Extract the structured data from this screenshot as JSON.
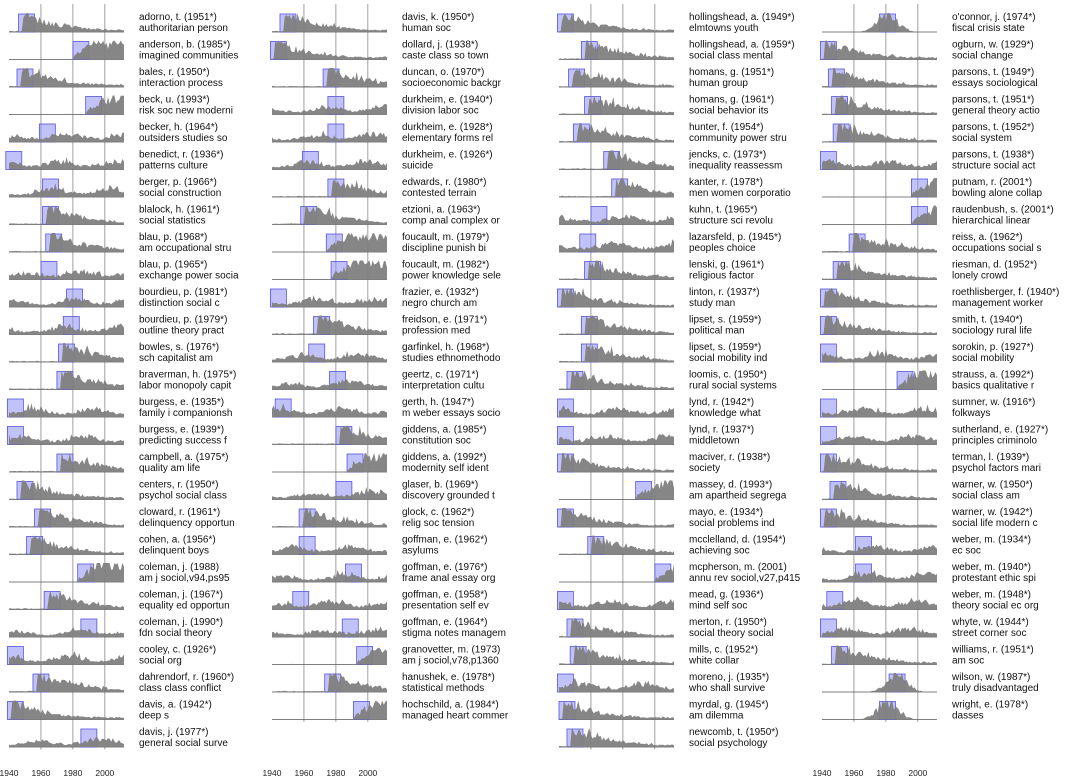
{
  "chart_data": {
    "type": "area",
    "title": "",
    "x_axis": {
      "range": [
        1940,
        2012
      ],
      "ticks": [
        1940,
        1960,
        1980,
        2000
      ],
      "gridlines": [
        1960,
        1980,
        2000
      ]
    },
    "colors": {
      "area": "#7f7f7f",
      "highlight_fill": "#8f8ff5",
      "highlight_border": "#5555dd",
      "gridline": "#888888"
    },
    "columns": [
      {
        "entries": [
          {
            "name": "adorno, t. (1951*)",
            "subtitle": "authoritarian person",
            "hl": 1951,
            "shape": "decay"
          },
          {
            "name": "anderson, b. (1985*)",
            "subtitle": "imagined communities",
            "hl": 1985,
            "shape": "grow"
          },
          {
            "name": "bales, r. (1950*)",
            "subtitle": "interaction process",
            "hl": 1950,
            "shape": "decay"
          },
          {
            "name": "beck, u. (1993*)",
            "subtitle": "risk soc new moderni",
            "hl": 1993,
            "shape": "grow"
          },
          {
            "name": "becker, h. (1964*)",
            "subtitle": "outsiders studies so",
            "hl": 1964,
            "shape": "flat"
          },
          {
            "name": "benedict, r. (1936*)",
            "subtitle": "patterns culture",
            "hl": 1943,
            "shape": "flat"
          },
          {
            "name": "berger, p. (1966*)",
            "subtitle": "social construction",
            "hl": 1966,
            "shape": "flat"
          },
          {
            "name": "blalock, h. (1961*)",
            "subtitle": "social statistics",
            "hl": 1966,
            "shape": "decay"
          },
          {
            "name": "blau, p. (1968*)",
            "subtitle": "am occupational stru",
            "hl": 1968,
            "shape": "decay"
          },
          {
            "name": "blau, p. (1965*)",
            "subtitle": "exchange power socia",
            "hl": 1965,
            "shape": "flat"
          },
          {
            "name": "bourdieu, p. (1981*)",
            "subtitle": "distinction social c",
            "hl": 1981,
            "shape": "flat"
          },
          {
            "name": "bourdieu, p. (1979*)",
            "subtitle": "outline theory pract",
            "hl": 1979,
            "shape": "flat"
          },
          {
            "name": "bowles, s. (1976*)",
            "subtitle": "sch capitalist am",
            "hl": 1976,
            "shape": "decay"
          },
          {
            "name": "braverman, h. (1975*)",
            "subtitle": "labor monopoly capit",
            "hl": 1975,
            "shape": "decay"
          },
          {
            "name": "burgess, e. (1935*)",
            "subtitle": "family i companionsh",
            "hl": 1944,
            "shape": "flat"
          },
          {
            "name": "burgess, e. (1939*)",
            "subtitle": "predicting success f",
            "hl": 1944,
            "shape": "flat"
          },
          {
            "name": "campbell, a. (1975*)",
            "subtitle": "quality am life",
            "hl": 1975,
            "shape": "decay"
          },
          {
            "name": "centers, r. (1950*)",
            "subtitle": "psychol social class",
            "hl": 1950,
            "shape": "decay"
          },
          {
            "name": "cloward, r. (1961*)",
            "subtitle": "delinquency opportun",
            "hl": 1961,
            "shape": "decay"
          },
          {
            "name": "cohen, a. (1956*)",
            "subtitle": "delinquent boys",
            "hl": 1956,
            "shape": "decay"
          },
          {
            "name": "coleman, j. (1988)",
            "subtitle": "am j sociol,v94,ps95",
            "hl": 1988,
            "shape": "grow"
          },
          {
            "name": "coleman, j. (1967*)",
            "subtitle": "equality ed opportun",
            "hl": 1967,
            "shape": "decay"
          },
          {
            "name": "coleman, j. (1990*)",
            "subtitle": "fdn social theory",
            "hl": 1990,
            "shape": "flat"
          },
          {
            "name": "cooley, c. (1926*)",
            "subtitle": "social org",
            "hl": 1944,
            "shape": "flat"
          },
          {
            "name": "dahrendorf, r. (1960*)",
            "subtitle": "class class conflict",
            "hl": 1960,
            "shape": "decay"
          },
          {
            "name": "davis, a. (1942*)",
            "subtitle": "deep s",
            "hl": 1944,
            "shape": "decay"
          },
          {
            "name": "davis, j. (1977*)",
            "subtitle": "general social surve",
            "hl": 1990,
            "shape": "flat"
          }
        ]
      },
      {
        "entries": [
          {
            "name": "davis, k. (1950*)",
            "subtitle": "human soc",
            "hl": 1950,
            "shape": "decay"
          },
          {
            "name": "dollard, j. (1938*)",
            "subtitle": "caste class so town",
            "hl": 1944,
            "shape": "decay"
          },
          {
            "name": "duncan, o. (1970*)",
            "subtitle": "socioeconomic backgr",
            "hl": 1977,
            "shape": "decay"
          },
          {
            "name": "durkheim, e. (1940*)",
            "subtitle": "division labor soc",
            "hl": 1980,
            "shape": "flat"
          },
          {
            "name": "durkheim, e. (1928*)",
            "subtitle": "elementary forms rel",
            "hl": 1980,
            "shape": "flat"
          },
          {
            "name": "durkheim, e. (1926*)",
            "subtitle": "suicide",
            "hl": 1964,
            "shape": "flat"
          },
          {
            "name": "edwards, r. (1980*)",
            "subtitle": "contested terrain",
            "hl": 1980,
            "shape": "decay"
          },
          {
            "name": "etzioni, a. (1963*)",
            "subtitle": "comp anal complex or",
            "hl": 1963,
            "shape": "decay"
          },
          {
            "name": "foucault, m. (1979*)",
            "subtitle": "discipline punish bi",
            "hl": 1979,
            "shape": "grow"
          },
          {
            "name": "foucault, m. (1982*)",
            "subtitle": "power knowledge sele",
            "hl": 1982,
            "shape": "grow"
          },
          {
            "name": "frazier, e. (1932*)",
            "subtitle": "negro church am",
            "hl": 1944,
            "shape": "flat"
          },
          {
            "name": "freidson, e. (1971*)",
            "subtitle": "profession med",
            "hl": 1971,
            "shape": "decay"
          },
          {
            "name": "garfinkel, h. (1968*)",
            "subtitle": "studies ethnomethodo",
            "hl": 1968,
            "shape": "flat"
          },
          {
            "name": "geertz, c. (1971*)",
            "subtitle": "interpretation cultu",
            "hl": 1981,
            "shape": "flat"
          },
          {
            "name": "gerth, h. (1947*)",
            "subtitle": "m weber essays socio",
            "hl": 1947,
            "shape": "flat"
          },
          {
            "name": "giddens, a. (1985*)",
            "subtitle": "constitution soc",
            "hl": 1985,
            "shape": "decay"
          },
          {
            "name": "giddens, a. (1992*)",
            "subtitle": "modernity self ident",
            "hl": 1992,
            "shape": "grow"
          },
          {
            "name": "glaser, b. (1969*)",
            "subtitle": "discovery grounded t",
            "hl": 1985,
            "shape": "flat"
          },
          {
            "name": "glock, c. (1962*)",
            "subtitle": "relig soc tension",
            "hl": 1962,
            "shape": "decay"
          },
          {
            "name": "goffman, e. (1962*)",
            "subtitle": "asylums",
            "hl": 1962,
            "shape": "flat"
          },
          {
            "name": "goffman, e. (1976*)",
            "subtitle": "frame anal essay org",
            "hl": 1991,
            "shape": "flat"
          },
          {
            "name": "goffman, e. (1958*)",
            "subtitle": "presentation self ev",
            "hl": 1958,
            "shape": "flat"
          },
          {
            "name": "goffman, e. (1964*)",
            "subtitle": "stigma notes managem",
            "hl": 1989,
            "shape": "flat"
          },
          {
            "name": "granovetter, m. (1973)",
            "subtitle": "am j sociol,v78,p1360",
            "hl": 1998,
            "shape": "grow"
          },
          {
            "name": "hanushek, e. (1978*)",
            "subtitle": "statistical methods",
            "hl": 1978,
            "shape": "decay"
          },
          {
            "name": "hochschild, a. (1984*)",
            "subtitle": "managed heart commer",
            "hl": 1996,
            "shape": "grow"
          }
        ]
      },
      {
        "entries": [
          {
            "name": "hollingshead, a. (1949*)",
            "subtitle": "elmtowns youth",
            "hl": 1944,
            "shape": "decay"
          },
          {
            "name": "hollingshead, a. (1959*)",
            "subtitle": "social class mental",
            "hl": 1959,
            "shape": "decay"
          },
          {
            "name": "homans, g. (1951*)",
            "subtitle": "human group",
            "hl": 1951,
            "shape": "decay"
          },
          {
            "name": "homans, g. (1961*)",
            "subtitle": "social behavior its",
            "hl": 1961,
            "shape": "decay"
          },
          {
            "name": "hunter, f. (1954*)",
            "subtitle": "community power stru",
            "hl": 1954,
            "shape": "decay"
          },
          {
            "name": "jencks, c. (1973*)",
            "subtitle": "inequality reassessm",
            "hl": 1973,
            "shape": "decay"
          },
          {
            "name": "kanter, r. (1978*)",
            "subtitle": "men women corporatio",
            "hl": 1978,
            "shape": "decay"
          },
          {
            "name": "kuhn, t. (1965*)",
            "subtitle": "structure sci revolu",
            "hl": 1965,
            "shape": "flat"
          },
          {
            "name": "lazarsfeld, p. (1945*)",
            "subtitle": "peoples choice",
            "hl": 1958,
            "shape": "flat"
          },
          {
            "name": "lenski, g. (1961*)",
            "subtitle": "religious factor",
            "hl": 1961,
            "shape": "decay"
          },
          {
            "name": "linton, r. (1937*)",
            "subtitle": "study man",
            "hl": 1944,
            "shape": "decay"
          },
          {
            "name": "lipset, s. (1959*)",
            "subtitle": "political man",
            "hl": 1959,
            "shape": "decay"
          },
          {
            "name": "lipset, s. (1959*)",
            "subtitle": "social mobility ind",
            "hl": 1959,
            "shape": "decay"
          },
          {
            "name": "loomis, c. (1950*)",
            "subtitle": "rural social systems",
            "hl": 1950,
            "shape": "decay"
          },
          {
            "name": "lynd, r. (1942*)",
            "subtitle": "knowledge what",
            "hl": 1944,
            "shape": "flat"
          },
          {
            "name": "lynd, r. (1937*)",
            "subtitle": "middletown",
            "hl": 1944,
            "shape": "flat"
          },
          {
            "name": "maciver, r. (1938*)",
            "subtitle": "society",
            "hl": 1944,
            "shape": "decay"
          },
          {
            "name": "massey, d. (1993*)",
            "subtitle": "am apartheid segrega",
            "hl": 1993,
            "shape": "grow"
          },
          {
            "name": "mayo, e. (1934*)",
            "subtitle": "social problems ind",
            "hl": 1944,
            "shape": "decay"
          },
          {
            "name": "mcclelland, d. (1954*)",
            "subtitle": "achieving soc",
            "hl": 1963,
            "shape": "decay"
          },
          {
            "name": "mcpherson, m. (2001)",
            "subtitle": "annu rev sociol,v27,p415",
            "hl": 2005,
            "shape": "grow"
          },
          {
            "name": "mead, g. (1936*)",
            "subtitle": "mind self soc",
            "hl": 1944,
            "shape": "flat"
          },
          {
            "name": "merton, r. (1950*)",
            "subtitle": "social theory social",
            "hl": 1950,
            "shape": "decay"
          },
          {
            "name": "mills, c. (1952*)",
            "subtitle": "white collar",
            "hl": 1952,
            "shape": "decay"
          },
          {
            "name": "moreno, j. (1935*)",
            "subtitle": "who shall survive",
            "hl": 1944,
            "shape": "flat"
          },
          {
            "name": "myrdal, g. (1945*)",
            "subtitle": "am dilemma",
            "hl": 1945,
            "shape": "decay"
          },
          {
            "name": "newcomb, t. (1950*)",
            "subtitle": "social psychology",
            "hl": 1950,
            "shape": "decay"
          }
        ]
      },
      {
        "entries": [
          {
            "name": "o'connor, j. (1974*)",
            "subtitle": "fiscal crisis state",
            "hl": 1981,
            "shape": "peak"
          },
          {
            "name": "ogburn, w. (1929*)",
            "subtitle": "social change",
            "hl": 1944,
            "shape": "decay"
          },
          {
            "name": "parsons, t. (1949*)",
            "subtitle": "essays sociological",
            "hl": 1949,
            "shape": "decay"
          },
          {
            "name": "parsons, t. (1951*)",
            "subtitle": "general theory actio",
            "hl": 1951,
            "shape": "decay"
          },
          {
            "name": "parsons, t. (1952*)",
            "subtitle": "social system",
            "hl": 1952,
            "shape": "decay"
          },
          {
            "name": "parsons, t. (1938*)",
            "subtitle": "structure social act",
            "hl": 1944,
            "shape": "flat"
          },
          {
            "name": "putnam, r. (2001*)",
            "subtitle": "bowling alone collap",
            "hl": 2001,
            "shape": "grow"
          },
          {
            "name": "raudenbush, s. (2001*)",
            "subtitle": "hierarchical linear",
            "hl": 2001,
            "shape": "grow"
          },
          {
            "name": "reiss, a. (1962*)",
            "subtitle": "occupations social s",
            "hl": 1962,
            "shape": "decay"
          },
          {
            "name": "riesman, d. (1952*)",
            "subtitle": "lonely crowd",
            "hl": 1952,
            "shape": "decay"
          },
          {
            "name": "roethlisberger, f. (1940*)",
            "subtitle": "management worker",
            "hl": 1944,
            "shape": "decay"
          },
          {
            "name": "smith, t. (1940*)",
            "subtitle": "sociology rural life",
            "hl": 1944,
            "shape": "decay"
          },
          {
            "name": "sorokin, p. (1927*)",
            "subtitle": "social mobility",
            "hl": 1944,
            "shape": "flat"
          },
          {
            "name": "strauss, a. (1992*)",
            "subtitle": "basics qualitative r",
            "hl": 1992,
            "shape": "grow"
          },
          {
            "name": "sumner, w. (1916*)",
            "subtitle": "folkways",
            "hl": 1944,
            "shape": "flat"
          },
          {
            "name": "sutherland, e. (1927*)",
            "subtitle": "principles criminolo",
            "hl": 1944,
            "shape": "flat"
          },
          {
            "name": "terman, l. (1939*)",
            "subtitle": "psychol factors mari",
            "hl": 1944,
            "shape": "decay"
          },
          {
            "name": "warner, w. (1950*)",
            "subtitle": "social class am",
            "hl": 1950,
            "shape": "decay"
          },
          {
            "name": "warner, w. (1942*)",
            "subtitle": "social life modern c",
            "hl": 1944,
            "shape": "decay"
          },
          {
            "name": "weber, m. (1934*)",
            "subtitle": "ec soc",
            "hl": 1966,
            "shape": "flat"
          },
          {
            "name": "weber, m. (1940*)",
            "subtitle": "protestant ethic spi",
            "hl": 1966,
            "shape": "flat"
          },
          {
            "name": "weber, m. (1948*)",
            "subtitle": "theory social ec org",
            "hl": 1948,
            "shape": "flat"
          },
          {
            "name": "whyte, w. (1944*)",
            "subtitle": "street corner soc",
            "hl": 1944,
            "shape": "flat"
          },
          {
            "name": "williams, r. (1951*)",
            "subtitle": "am soc",
            "hl": 1951,
            "shape": "decay"
          },
          {
            "name": "wilson, w. (1987*)",
            "subtitle": "truly disadvantaged",
            "hl": 1987,
            "shape": "peak"
          },
          {
            "name": "wright, e. (1978*)",
            "subtitle": "dasses",
            "hl": 1981,
            "shape": "peak"
          }
        ]
      }
    ]
  }
}
